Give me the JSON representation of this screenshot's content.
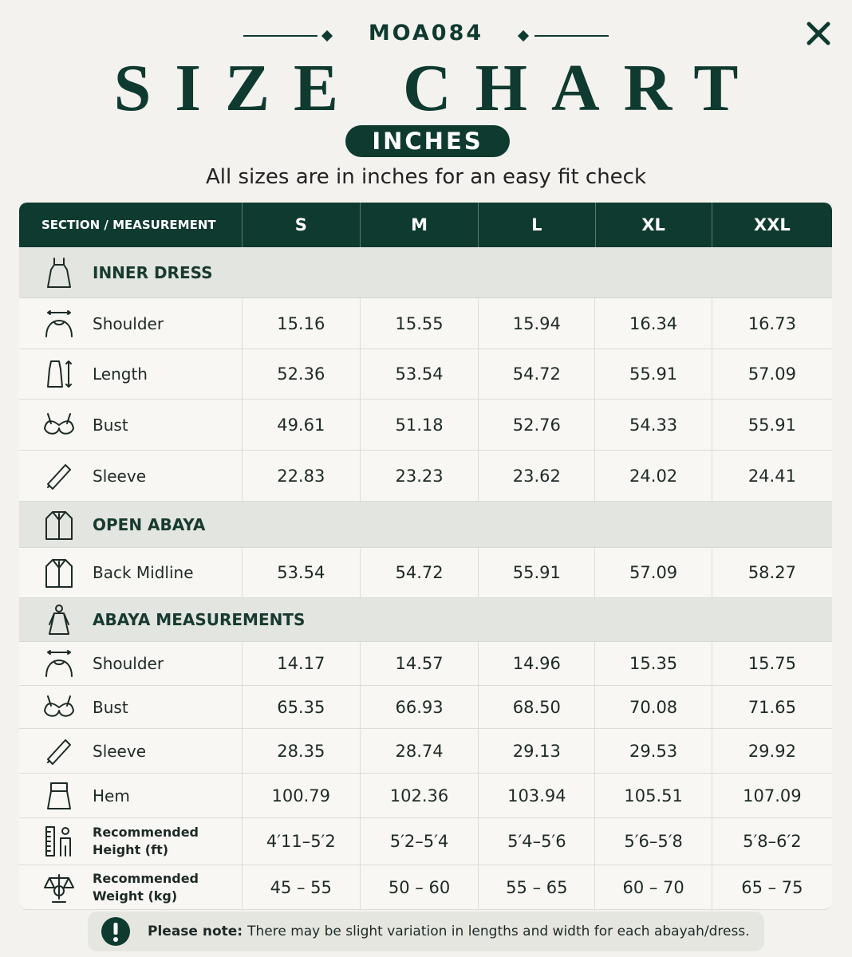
{
  "header": {
    "code": "MOA084",
    "title": "SIZE CHART",
    "badge": "INCHES",
    "subtitle": "All sizes are in inches for an easy fit check"
  },
  "table": {
    "columns": [
      "SECTION / MEASUREMENT",
      "S",
      "M",
      "L",
      "XL",
      "XXL"
    ],
    "sections": [
      {
        "title": "INNER DRESS",
        "rows": [
          {
            "label": "Shoulder",
            "values": [
              "15.16",
              "15.55",
              "15.94",
              "16.34",
              "16.73"
            ]
          },
          {
            "label": "Length",
            "values": [
              "52.36",
              "53.54",
              "54.72",
              "55.91",
              "57.09"
            ]
          },
          {
            "label": "Bust",
            "values": [
              "49.61",
              "51.18",
              "52.76",
              "54.33",
              "55.91"
            ]
          },
          {
            "label": "Sleeve",
            "values": [
              "22.83",
              "23.23",
              "23.62",
              "24.02",
              "24.41"
            ]
          }
        ]
      },
      {
        "title": "OPEN ABAYA",
        "rows": [
          {
            "label": "Back Midline",
            "values": [
              "53.54",
              "54.72",
              "55.91",
              "57.09",
              "58.27"
            ]
          }
        ]
      },
      {
        "title": "ABAYA MEASUREMENTS",
        "rows": [
          {
            "label": "Shoulder",
            "values": [
              "14.17",
              "14.57",
              "14.96",
              "15.35",
              "15.75"
            ]
          },
          {
            "label": "Bust",
            "values": [
              "65.35",
              "66.93",
              "68.50",
              "70.08",
              "71.65"
            ]
          },
          {
            "label": "Sleeve",
            "values": [
              "28.35",
              "28.74",
              "29.13",
              "29.53",
              "29.92"
            ]
          },
          {
            "label": "Hem",
            "values": [
              "100.79",
              "102.36",
              "103.94",
              "105.51",
              "107.09"
            ]
          },
          {
            "label": "Recommended Height (ft)",
            "values": [
              "4′11–5′2",
              "5′2–5′4",
              "5′4–5′6",
              "5′6–5′8",
              "5′8–6′2"
            ]
          },
          {
            "label": "Recommended Weight (kg)",
            "values": [
              "45 – 55",
              "50 – 60",
              "55 – 65",
              "60 – 70",
              "65 – 75"
            ]
          }
        ]
      }
    ]
  },
  "note": {
    "label": "Please note:",
    "text": "There may be slight variation in lengths and width for each abayah/dress."
  }
}
